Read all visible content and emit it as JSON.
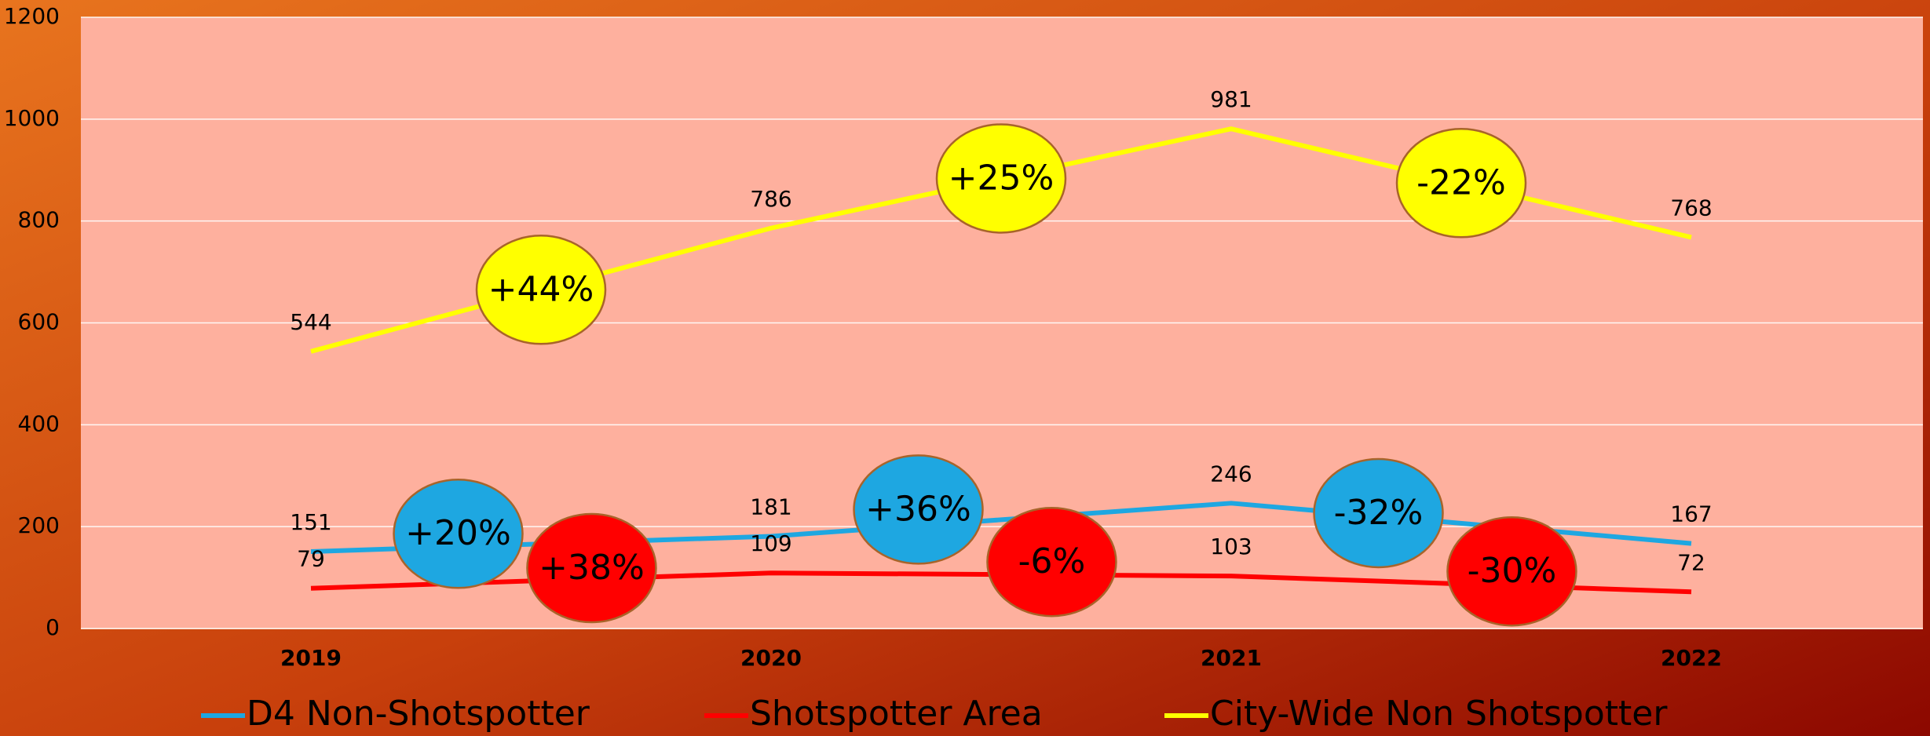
{
  "chart_data": {
    "type": "line",
    "categories": [
      "2019",
      "2020",
      "2021",
      "2022"
    ],
    "series": [
      {
        "name": "D4 Non-Shotspotter",
        "color": "#1ea7e1",
        "values": [
          151,
          181,
          246,
          167
        ],
        "change_labels": [
          "+20%",
          "+36%",
          "-32%"
        ]
      },
      {
        "name": "Shotspotter Area",
        "color": "#ff0000",
        "values": [
          79,
          109,
          103,
          72
        ],
        "change_labels": [
          "+38%",
          "-6%",
          "-30%"
        ]
      },
      {
        "name": "City-Wide Non Shotspotter",
        "color": "#ffff00",
        "values": [
          544,
          786,
          981,
          768
        ],
        "change_labels": [
          "+44%",
          "+25%",
          "-22%"
        ]
      }
    ],
    "ylim": [
      0,
      1200
    ],
    "yticks": [
      0,
      200,
      400,
      600,
      800,
      1000,
      1200
    ],
    "grid": true,
    "legend": "bottom"
  }
}
